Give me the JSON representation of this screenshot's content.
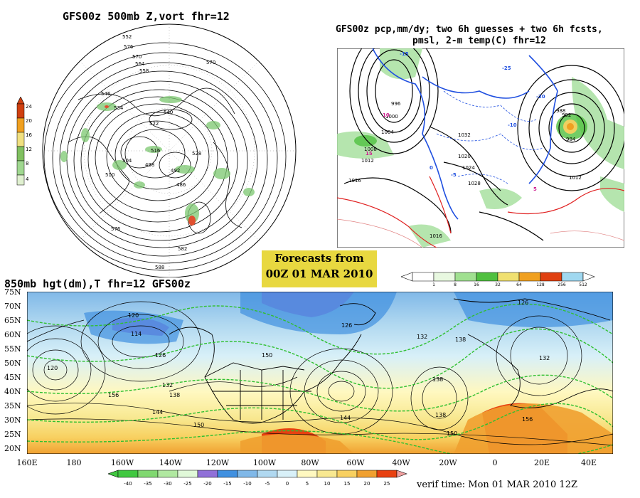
{
  "panel_500mb": {
    "title": "GFS00z  500mb Z,vort   fhr=12",
    "colorbar_ticks": [
      "24",
      "20",
      "16",
      "12",
      "8",
      "4"
    ],
    "colorbar_colors": [
      "#d04010",
      "#f0a020",
      "#f0e080",
      "#80c060",
      "#a0d890",
      "#e0f0d0"
    ],
    "contour_labels": [
      "552",
      "576",
      "570",
      "564",
      "558",
      "546",
      "540",
      "534",
      "528",
      "522",
      "516",
      "510",
      "504",
      "498",
      "492",
      "486",
      "570",
      "576",
      "582",
      "588"
    ]
  },
  "panel_precip": {
    "title_line1": "GFS00z pcp,mm/dy; two 6h guesses + two 6h fcsts,",
    "title_line2": "pmsl, 2-m temp(C)  fhr=12",
    "pressure_labels": [
      "1016",
      "1012",
      "1008",
      "1004",
      "1000",
      "996",
      "992",
      "988",
      "984",
      "1020",
      "1024",
      "1028",
      "1032",
      "1012",
      "1016"
    ],
    "temp_labels": [
      "-15",
      "-10",
      "-5",
      "0",
      "5",
      "10",
      "15",
      "-20",
      "-25"
    ],
    "colorbar_ticks": [
      "1",
      "8",
      "16",
      "32",
      "64",
      "128",
      "256",
      "512"
    ],
    "colorbar_colors": [
      "#e8f8e0",
      "#a0e090",
      "#50c040",
      "#f0e070",
      "#f0a020",
      "#e04010",
      "#a0d8f0"
    ]
  },
  "banner": {
    "line1": "Forecasts from",
    "line2": "00Z 01 MAR 2010"
  },
  "panel_850mb": {
    "title": "850mb hgt(dm),T  fhr=12 GFS00z",
    "lat_labels": [
      "75N",
      "70N",
      "65N",
      "60N",
      "55N",
      "50N",
      "45N",
      "40N",
      "35N",
      "30N",
      "25N",
      "20N"
    ],
    "lon_labels": [
      "160E",
      "180",
      "160W",
      "140W",
      "120W",
      "100W",
      "80W",
      "60W",
      "40W",
      "20W",
      "0",
      "20E",
      "40E"
    ],
    "height_labels": [
      "120",
      "114",
      "126",
      "132",
      "138",
      "144",
      "150",
      "156",
      "120",
      "126",
      "132",
      "138",
      "144",
      "150",
      "138",
      "132",
      "126",
      "138",
      "150",
      "156"
    ],
    "colorbar_ticks": [
      "-40",
      "-35",
      "-30",
      "-25",
      "-20",
      "-15",
      "-10",
      "-5",
      "0",
      "5",
      "10",
      "15",
      "20",
      "25"
    ],
    "colorbar_colors": [
      "#40c840",
      "#80d870",
      "#b0e8a0",
      "#9070d8",
      "#4090e0",
      "#80b8e8",
      "#b0d8f0",
      "#d8f0f8",
      "#fff8c0",
      "#f8e890",
      "#f8d060",
      "#f0a030",
      "#e84010",
      "#f0a0a0"
    ],
    "verif_time": "verif time: Mon 01 MAR 2010 12Z"
  }
}
